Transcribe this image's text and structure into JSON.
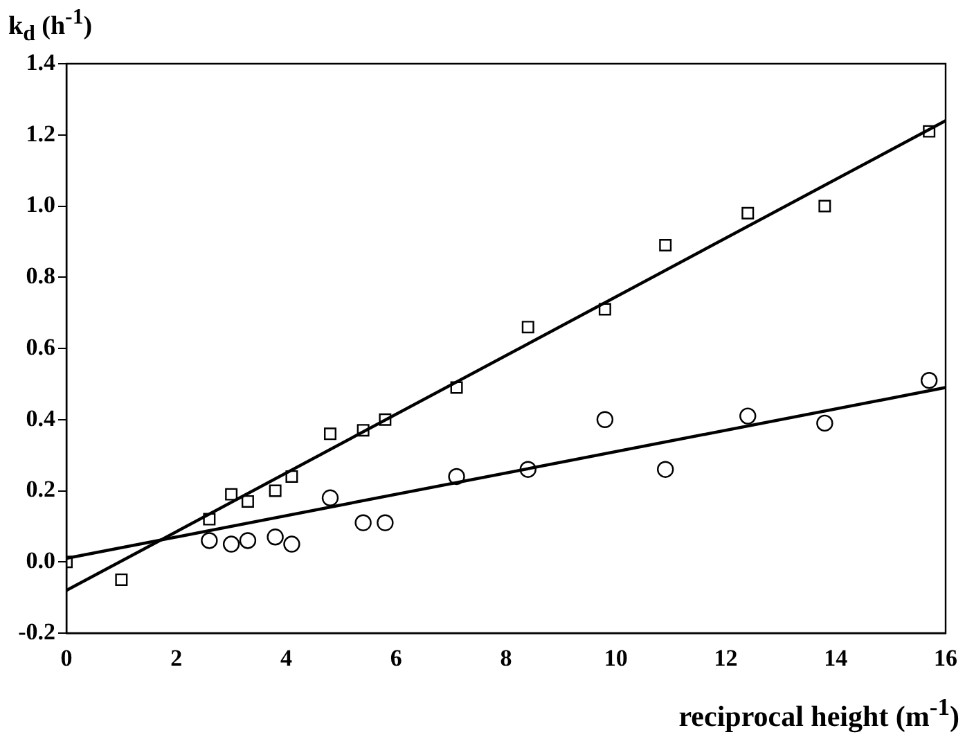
{
  "chart_data": {
    "type": "scatter",
    "xlabel": "reciprocal height (m$^{-1}$)",
    "ylabel": "k$_{d}$ (h$^{-1}$)",
    "xlim": [
      0,
      16
    ],
    "xticks": [
      0,
      2,
      4,
      6,
      8,
      10,
      12,
      14,
      16
    ],
    "ylim": [
      -0.2,
      1.4
    ],
    "yticks": [
      -0.2,
      {
        "value": 0,
        "label": "0.0"
      },
      0.2,
      0.4,
      0.6,
      0.8,
      {
        "value": 1,
        "label": "1.0"
      },
      1.2,
      1.4
    ],
    "grid": false,
    "legend": false,
    "series": [
      {
        "type": "scatter",
        "marker": "square",
        "color": "#000000",
        "x": [
          0,
          1.0,
          2.6,
          3.0,
          3.3,
          3.8,
          4.1,
          4.8,
          5.4,
          5.8,
          7.1,
          8.4,
          9.8,
          10.9,
          12.4,
          13.8,
          15.7
        ],
        "values": [
          0.0,
          -0.05,
          0.12,
          0.19,
          0.17,
          0.2,
          0.24,
          0.36,
          0.37,
          0.4,
          0.49,
          0.66,
          0.71,
          0.89,
          0.98,
          1.0,
          1.21
        ]
      },
      {
        "type": "scatter",
        "marker": "circle",
        "color": "#000000",
        "x": [
          2.6,
          3.0,
          3.3,
          3.8,
          4.1,
          4.8,
          5.4,
          5.8,
          7.1,
          8.4,
          9.8,
          10.9,
          12.4,
          13.8,
          15.7
        ],
        "values": [
          0.06,
          0.05,
          0.06,
          0.07,
          0.05,
          0.18,
          0.11,
          0.11,
          0.24,
          0.26,
          0.4,
          0.26,
          0.41,
          0.39,
          0.51
        ]
      },
      {
        "type": "line",
        "marker": "none",
        "line_style": "solid",
        "color": "#000000",
        "x": [
          0,
          16
        ],
        "values": [
          -0.08,
          1.24
        ]
      },
      {
        "type": "line",
        "marker": "none",
        "line_style": "solid",
        "color": "#000000",
        "x": [
          0,
          16
        ],
        "values": [
          0.01,
          0.49
        ]
      }
    ]
  }
}
